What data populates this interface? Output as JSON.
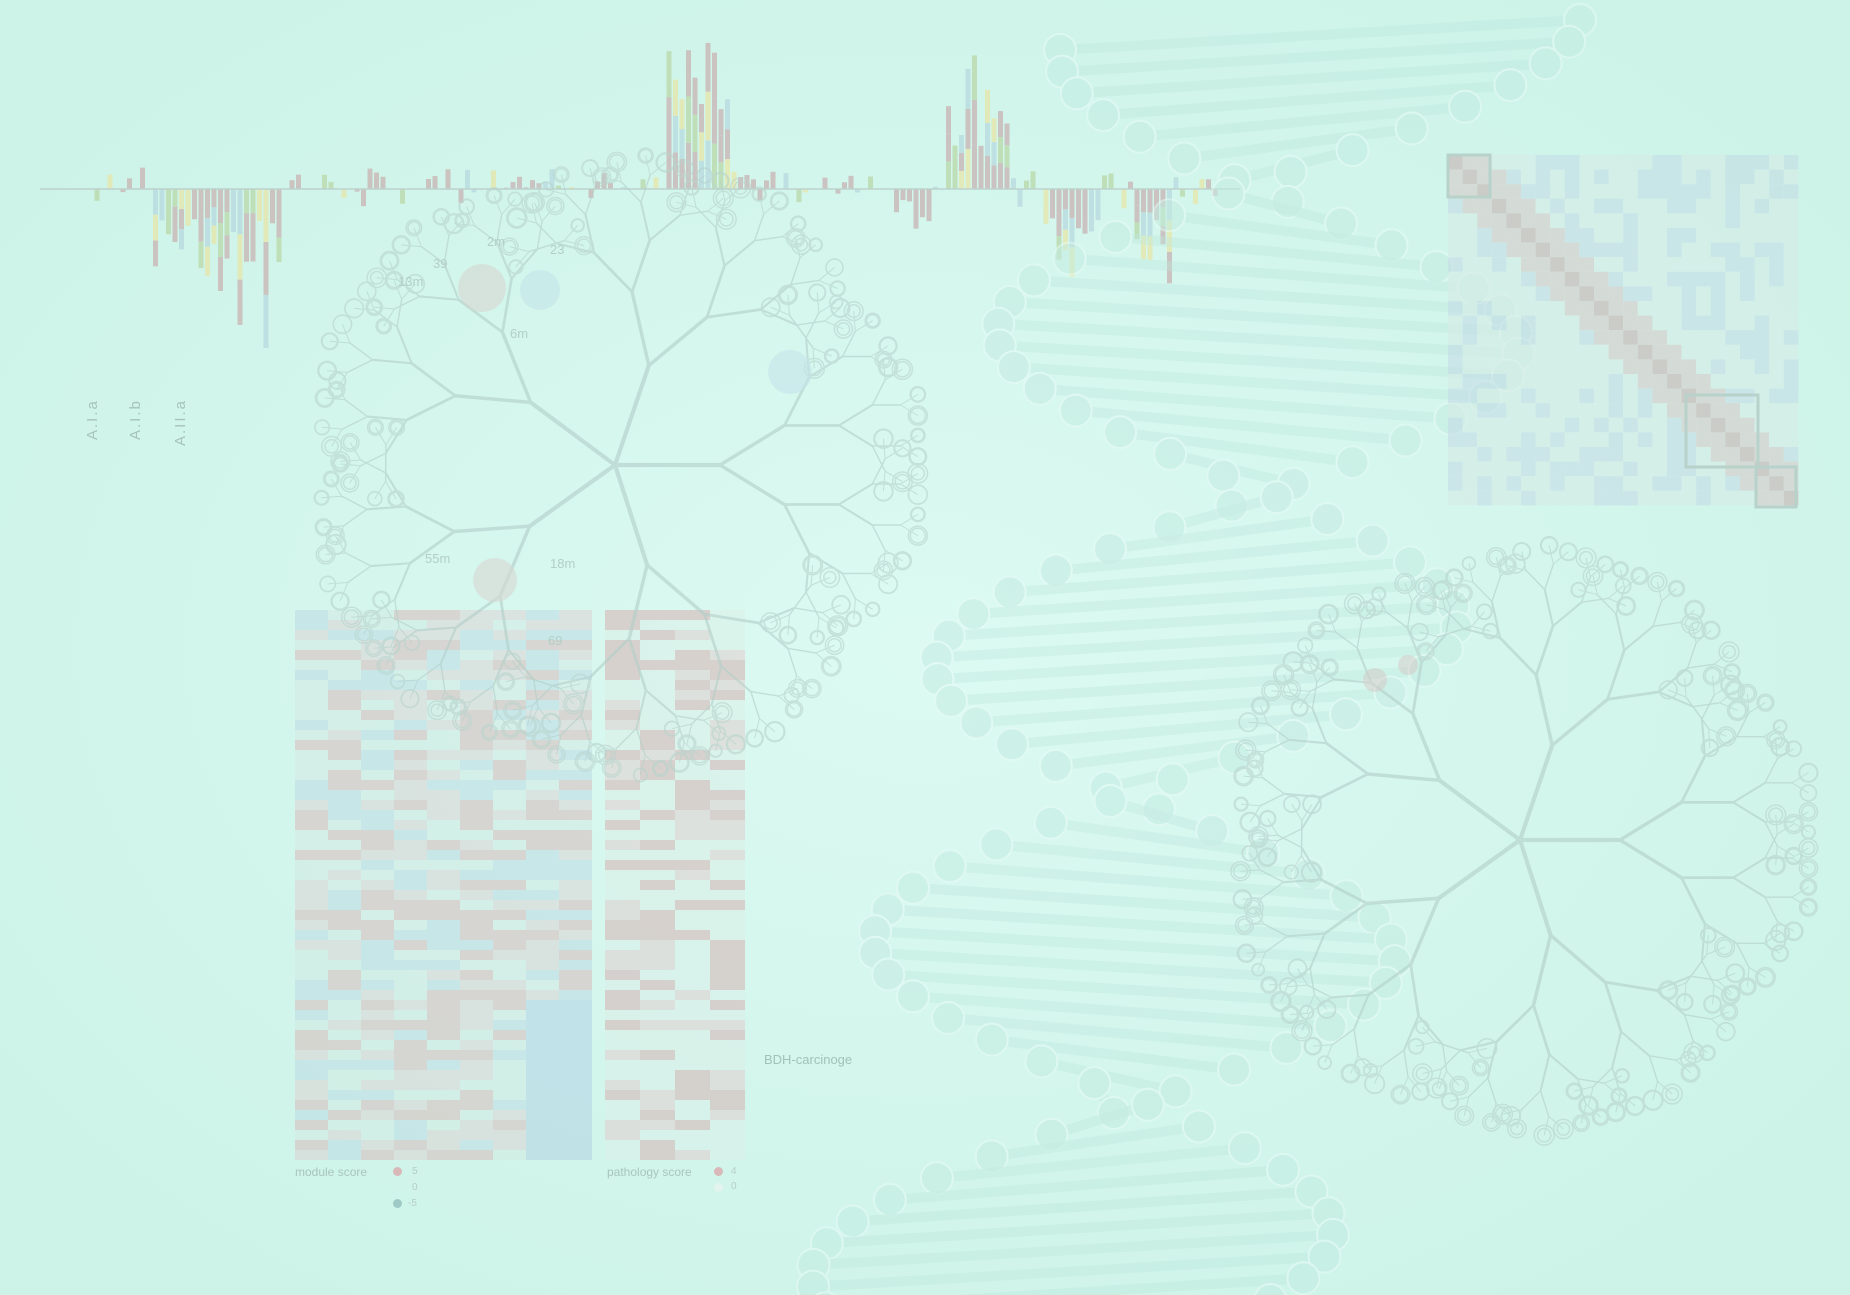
{
  "image": {
    "background_color": "#d4f7ee",
    "accent_colors": [
      "#c9b3b3",
      "#b7d9e0",
      "#b9d8a8",
      "#e8e6a8"
    ]
  },
  "section_labels": [
    "A.I.a",
    "A.I.b",
    "A.II.a"
  ],
  "tree_labels": [
    "2m",
    "23",
    "13m",
    "39",
    "6m",
    "55m",
    "18m",
    "69"
  ],
  "heatmap_label": "BDH-carcinoge",
  "legends": {
    "module": {
      "title": "module score",
      "values": [
        "5",
        "0",
        "-5"
      ]
    },
    "pathology": {
      "title": "pathology score",
      "values": [
        "4",
        "0"
      ]
    }
  }
}
